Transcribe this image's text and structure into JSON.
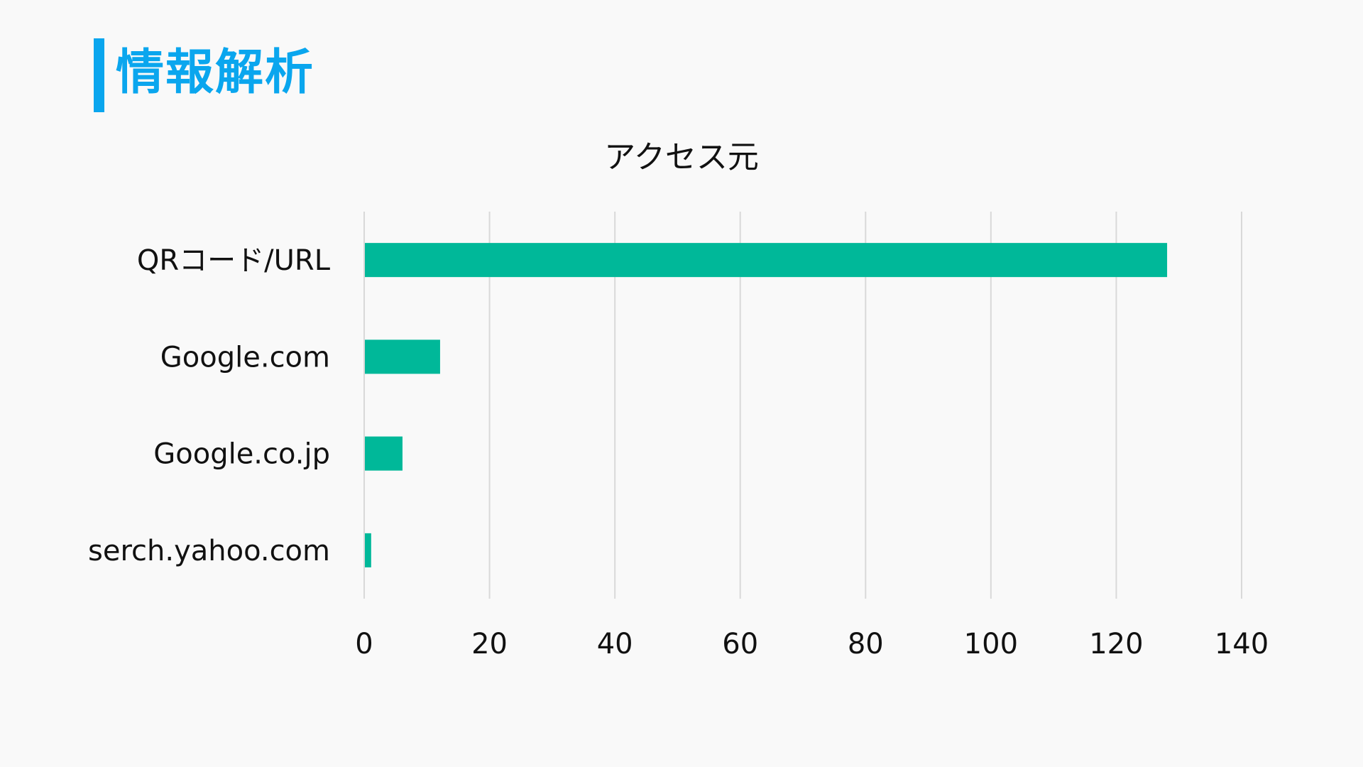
{
  "page": {
    "title": "情報解析",
    "accent_color": "#0aa6ee",
    "background": "#f9f9f9"
  },
  "chart_data": {
    "type": "bar",
    "orientation": "horizontal",
    "title": "アクセス元",
    "categories": [
      "QRコード/URL",
      "Google.com",
      "Google.co.jp",
      "serch.yahoo.com"
    ],
    "values": [
      128,
      12,
      6,
      1
    ],
    "xlim": [
      0,
      140
    ],
    "xticks": [
      "0",
      "20",
      "40",
      "60",
      "80",
      "100",
      "120",
      "140"
    ],
    "grid": "vertical",
    "legend": "none",
    "bar_color": "#00b899",
    "xlabel": "",
    "ylabel": ""
  }
}
